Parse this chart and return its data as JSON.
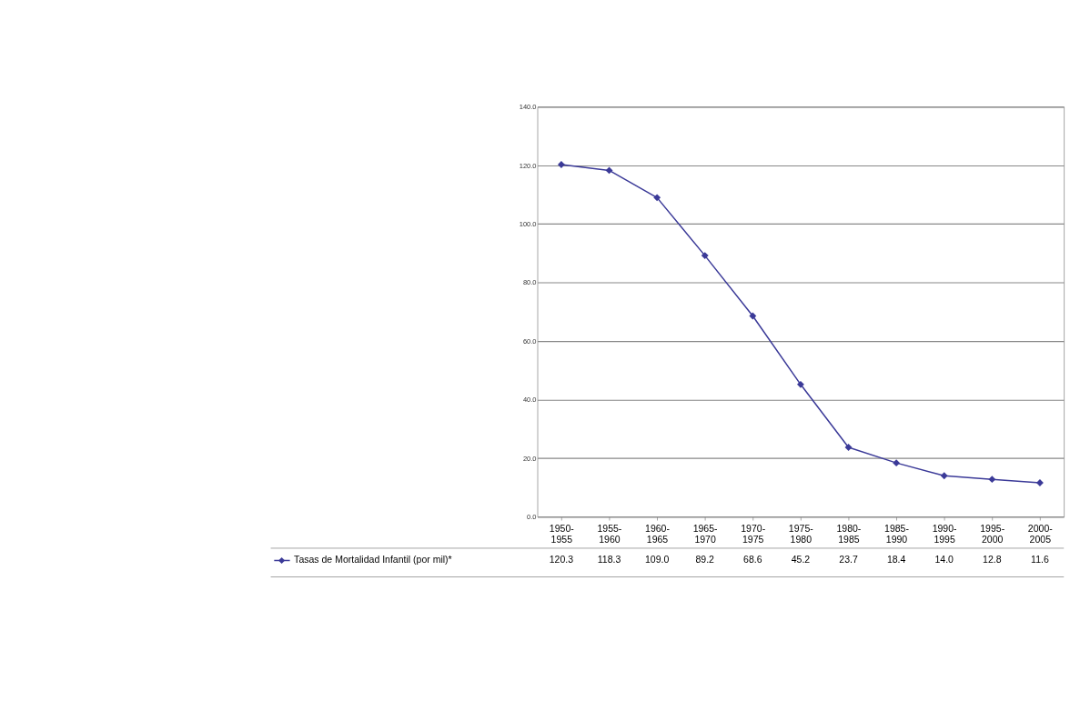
{
  "chart_data": {
    "type": "line",
    "categories": [
      "1950-1955",
      "1955-1960",
      "1960-1965",
      "1965-1970",
      "1970-1975",
      "1975-1980",
      "1980-1985",
      "1985-1990",
      "1990-1995",
      "1995-2000",
      "2000-2005"
    ],
    "series": [
      {
        "name": "Tasas de Mortalidad Infantil (por mil)*",
        "color": "#3b3a98",
        "values": [
          120.3,
          118.3,
          109.0,
          89.2,
          68.6,
          45.2,
          23.7,
          18.4,
          14.0,
          12.8,
          11.6
        ],
        "value_labels": [
          "120.3",
          "118.3",
          "109.0",
          "89.2",
          "68.6",
          "45.2",
          "23.7",
          "18.4",
          "14.0",
          "12.8",
          "11.6"
        ]
      }
    ],
    "ylim": [
      0,
      140
    ],
    "yticks": [
      {
        "value": 0,
        "label": "0.0"
      },
      {
        "value": 20,
        "label": "20.0"
      },
      {
        "value": 40,
        "label": "40.0"
      },
      {
        "value": 60,
        "label": "60.0"
      },
      {
        "value": 80,
        "label": "80.0"
      },
      {
        "value": 100,
        "label": "100.0"
      },
      {
        "value": 120,
        "label": "120.0"
      },
      {
        "value": 140,
        "label": "140.0"
      }
    ],
    "grid": "y",
    "marker": "diamond",
    "line_style": "solid",
    "legend": "bottom left"
  }
}
